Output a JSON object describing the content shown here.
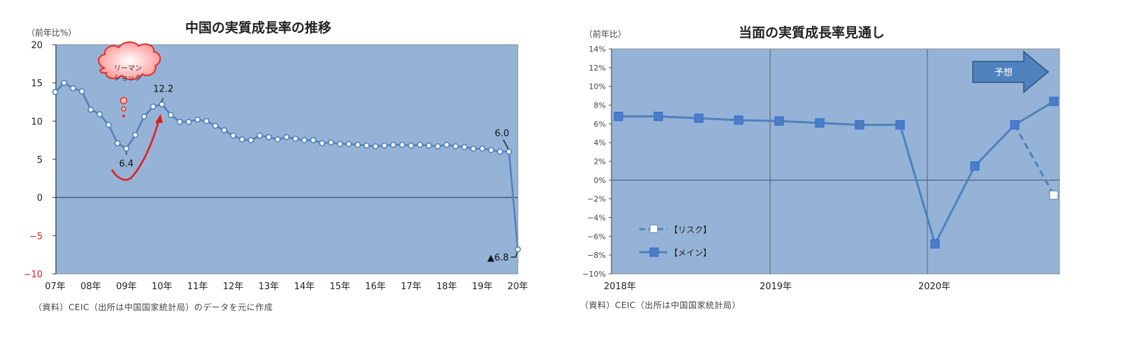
{
  "chart_data": [
    {
      "type": "line",
      "title": "中国の実質成長率の推移",
      "ylabel": "（前年比%）",
      "xlabel": "",
      "ylim": [
        -10,
        20
      ],
      "yticks": [
        20,
        15,
        10,
        5,
        0,
        -5,
        -10
      ],
      "negative_tick_color": "#e02020",
      "x_tick_labels": [
        "07年",
        "08年",
        "09年",
        "10年",
        "11年",
        "12年",
        "13年",
        "14年",
        "15年",
        "16年",
        "17年",
        "18年",
        "19年",
        "20年"
      ],
      "frequency": "quarterly",
      "x_start": "2007Q1",
      "x_end": "2020Q1",
      "series": [
        {
          "name": "実質成長率",
          "color": "#4f81bd",
          "marker": "circle-white",
          "values": [
            13.8,
            15.0,
            14.3,
            13.9,
            11.5,
            10.9,
            9.5,
            7.1,
            6.4,
            8.2,
            10.6,
            11.9,
            12.2,
            10.8,
            9.9,
            9.9,
            10.2,
            10.0,
            9.4,
            8.8,
            8.1,
            7.6,
            7.5,
            8.1,
            7.9,
            7.6,
            7.9,
            7.7,
            7.5,
            7.5,
            7.1,
            7.2,
            7.0,
            7.0,
            6.9,
            6.8,
            6.7,
            6.8,
            6.9,
            6.9,
            6.8,
            6.9,
            6.8,
            6.7,
            6.9,
            6.7,
            6.6,
            6.4,
            6.4,
            6.2,
            6.0,
            6.0,
            -6.8
          ]
        }
      ],
      "data_labels": [
        {
          "index": 8,
          "text": "6.4"
        },
        {
          "index": 12,
          "text": "12.2"
        },
        {
          "index": 51,
          "text": "6.0"
        },
        {
          "index": 52,
          "text": "▲6.8"
        }
      ],
      "annotations": [
        {
          "type": "thought-bubble",
          "text_line1": "リーマン",
          "text_line2": "ショック",
          "color": "#ff6666"
        },
        {
          "type": "curved-arrow",
          "color": "#e02020",
          "description": "V字回復"
        }
      ],
      "grid": false,
      "background": "#95b3d7",
      "source": "（資料）CEIC（出所は中国国家統計局）のデータを元に作成"
    },
    {
      "type": "line",
      "title": "当面の実質成長率見通し",
      "ylabel": "（前年比）",
      "xlabel": "",
      "ylim": [
        -10,
        14
      ],
      "yticks": [
        "14%",
        "12%",
        "10%",
        "8%",
        "6%",
        "4%",
        "2%",
        "0%",
        "-2%",
        "-4%",
        "-6%",
        "-8%",
        "-10%"
      ],
      "x_tick_labels": [
        "2018年",
        "2019年",
        "2020年"
      ],
      "frequency": "quarterly",
      "categories": [
        "2018Q1",
        "2018Q2",
        "2018Q3",
        "2018Q4",
        "2019Q1",
        "2019Q2",
        "2019Q3",
        "2019Q4",
        "2020Q1",
        "2020Q2",
        "2020Q3",
        "2020Q4"
      ],
      "series": [
        {
          "name": "【メイン】",
          "color": "#4f81bd",
          "style": "solid",
          "marker": "square-blue",
          "values": [
            6.8,
            6.8,
            6.6,
            6.4,
            6.3,
            6.1,
            5.9,
            5.9,
            -6.8,
            1.5,
            5.9,
            8.4
          ]
        },
        {
          "name": "【リスク】",
          "color": "#4f81bd",
          "style": "dashed",
          "marker": "square-white",
          "values": [
            null,
            null,
            null,
            null,
            null,
            null,
            null,
            null,
            null,
            null,
            5.9,
            -1.6
          ]
        }
      ],
      "legend": {
        "position": "lower-left-inside",
        "items": [
          "【リスク】",
          "【メイン】"
        ]
      },
      "annotations": [
        {
          "type": "block-arrow",
          "text": "予想",
          "color": "#4f81bd"
        }
      ],
      "vertical_dividers_at": [
        "2019年",
        "2020年"
      ],
      "grid": false,
      "background": "#95b3d7",
      "source": "（資料）CEIC（出所は中国国家統計局）"
    }
  ],
  "left": {
    "title": "中国の実質成長率の推移",
    "unit": "（前年比%）",
    "source": "（資料）CEIC（出所は中国国家統計局）のデータを元に作成",
    "bubble_line1": "リーマン",
    "bubble_line2": "ショック",
    "label_low": "6.4",
    "label_high": "12.2",
    "label_last_pos": "6.0",
    "label_last": "▲6.8"
  },
  "right": {
    "title": "当面の実質成長率見通し",
    "unit": "（前年比）",
    "source": "（資料）CEIC（出所は中国国家統計局）",
    "forecast_label": "予想",
    "legend_risk": "【リスク】",
    "legend_main": "【メイン】"
  }
}
